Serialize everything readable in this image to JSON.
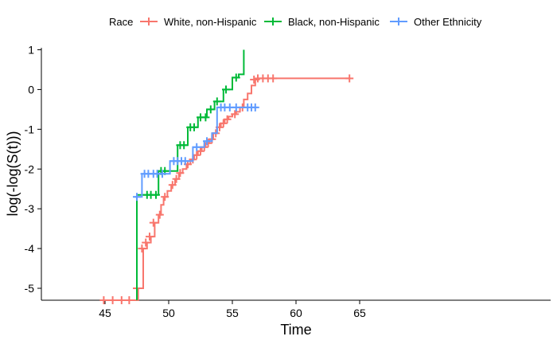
{
  "chart_data": {
    "type": "line",
    "subtype": "step-with-censor-marks",
    "xlabel": "Time",
    "ylabel": "log(-log(S(t)))",
    "xlim": [
      40,
      80
    ],
    "ylim": [
      -5.3,
      1.05
    ],
    "xticks": [
      45,
      50,
      55,
      60,
      65
    ],
    "yticks": [
      -5,
      -4,
      -3,
      -2,
      -1,
      0,
      1
    ],
    "grid": false,
    "legend": {
      "title": "Race",
      "placement": "top",
      "entries": [
        "White, non-Hispanic",
        "Black, non-Hispanic",
        "Other Ethnicity"
      ]
    },
    "series": [
      {
        "name": "White, non-Hispanic",
        "color": "#F8766D",
        "x": [
          44.6,
          47.3,
          47.6,
          48.0,
          48.3,
          48.6,
          48.9,
          49.2,
          49.4,
          49.6,
          49.9,
          50.2,
          50.5,
          50.8,
          51.1,
          51.4,
          51.7,
          52.0,
          52.3,
          52.6,
          52.9,
          53.2,
          53.5,
          53.8,
          54.1,
          54.4,
          54.7,
          55.0,
          55.3,
          55.6,
          55.9,
          56.2,
          56.5,
          56.8,
          57.1,
          64.2
        ],
        "y": [
          -5.3,
          -5.3,
          -5.0,
          -4.0,
          -3.85,
          -3.7,
          -3.35,
          -3.15,
          -2.9,
          -2.7,
          -2.55,
          -2.4,
          -2.25,
          -2.1,
          -2.0,
          -1.88,
          -1.76,
          -1.65,
          -1.55,
          -1.45,
          -1.35,
          -1.25,
          -1.1,
          -0.95,
          -0.85,
          -0.75,
          -0.68,
          -0.62,
          -0.56,
          -0.45,
          -0.25,
          -0.1,
          0.1,
          0.25,
          0.28,
          0.28
        ],
        "censored_x": [
          44.9,
          45.6,
          46.3,
          46.9,
          47.5,
          47.9,
          48.2,
          48.5,
          48.8,
          49.3,
          49.7,
          50.3,
          50.6,
          50.9,
          51.5,
          51.9,
          52.2,
          52.5,
          52.8,
          53.1,
          53.4,
          53.7,
          54.0,
          54.3,
          54.6,
          55.2,
          55.8,
          56.7,
          57.0,
          57.4,
          57.8,
          58.2,
          64.2
        ],
        "censored_y": [
          -5.3,
          -5.3,
          -5.3,
          -5.3,
          -5.0,
          -4.0,
          -3.85,
          -3.7,
          -3.35,
          -3.15,
          -2.7,
          -2.4,
          -2.25,
          -2.1,
          -1.88,
          -1.76,
          -1.65,
          -1.55,
          -1.45,
          -1.35,
          -1.25,
          -1.1,
          -0.95,
          -0.85,
          -0.75,
          -0.62,
          -0.45,
          0.25,
          0.28,
          0.28,
          0.28,
          0.28,
          0.28
        ]
      },
      {
        "name": "Black, non-Hispanic",
        "color": "#00BA38",
        "x": [
          47.5,
          47.5,
          49.2,
          49.2,
          50.7,
          51.5,
          52.3,
          53.0,
          53.6,
          54.3,
          55.0,
          55.5,
          55.9,
          55.9
        ],
        "y": [
          -5.3,
          -2.65,
          -2.65,
          -2.05,
          -1.4,
          -0.95,
          -0.7,
          -0.5,
          -0.3,
          0.0,
          0.3,
          0.38,
          0.6,
          1.0
        ],
        "censored_x": [
          48.3,
          48.6,
          49.0,
          49.4,
          49.7,
          50.9,
          51.2,
          51.7,
          52.0,
          52.5,
          52.9,
          53.3,
          53.8,
          54.5,
          55.3
        ],
        "censored_y": [
          -2.65,
          -2.65,
          -2.65,
          -2.05,
          -2.05,
          -1.4,
          -1.4,
          -0.95,
          -0.95,
          -0.7,
          -0.7,
          -0.5,
          -0.3,
          0.0,
          0.3
        ]
      },
      {
        "name": "Other Ethnicity",
        "color": "#619CFF",
        "x": [
          47.3,
          47.9,
          50.1,
          51.9,
          52.8,
          53.4,
          53.8,
          57.0
        ],
        "y": [
          -2.7,
          -2.12,
          -1.8,
          -1.45,
          -1.3,
          -1.1,
          -0.45,
          -0.45
        ],
        "censored_x": [
          47.5,
          48.1,
          48.4,
          48.8,
          49.1,
          49.5,
          50.4,
          50.7,
          51.0,
          51.3,
          52.2,
          53.0,
          54.1,
          54.4,
          54.8,
          55.3,
          56.2,
          56.5,
          56.8
        ],
        "censored_y": [
          -2.7,
          -2.12,
          -2.12,
          -2.12,
          -2.12,
          -2.12,
          -1.8,
          -1.8,
          -1.8,
          -1.8,
          -1.45,
          -1.3,
          -0.45,
          -0.45,
          -0.45,
          -0.45,
          -0.45,
          -0.45,
          -0.45
        ]
      }
    ]
  }
}
